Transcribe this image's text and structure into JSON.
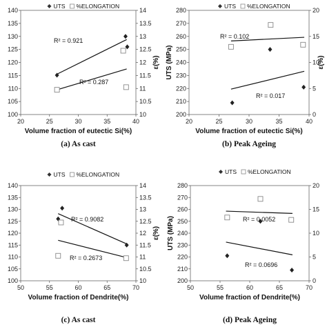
{
  "chart_data": [
    {
      "type": "scatter",
      "caption": "(a) As cast",
      "xlabel": "Volume fraction of eutectic Si(%)",
      "ylabel": "",
      "y2label": "ε(%)",
      "xlim": [
        20,
        40
      ],
      "xticks": [
        20,
        25,
        30,
        35,
        40
      ],
      "ylim": [
        100,
        140
      ],
      "yticks": [
        100,
        105,
        110,
        115,
        120,
        125,
        130,
        135,
        140
      ],
      "y2lim": [
        10,
        14
      ],
      "y2ticks": [
        "10",
        "10.5",
        "11",
        "11.5",
        "12",
        "12.5",
        "13",
        "13.5",
        "14"
      ],
      "legend": [
        "UTS",
        "%ELONGATION"
      ],
      "legend_placement": "top",
      "series": [
        {
          "name": "UTS",
          "marker": "diamond",
          "axis": "left",
          "x": [
            26.3,
            38.2,
            38.5
          ],
          "y": [
            115.1,
            130,
            126
          ]
        },
        {
          "name": "%ELONGATION",
          "marker": "square",
          "axis": "right",
          "x": [
            26.3,
            37.8,
            38.3
          ],
          "y": [
            10.95,
            12.45,
            11.05
          ]
        }
      ],
      "trendlines": [
        {
          "series": "UTS",
          "x": [
            26.3,
            38.4
          ],
          "y": [
            115.5,
            128.8
          ],
          "r2_label": "R² = 0.921"
        },
        {
          "series": "%ELONGATION",
          "x": [
            26.3,
            38.4
          ],
          "y": [
            10.95,
            11.75
          ],
          "r2_label": "R² = 0.287"
        }
      ]
    },
    {
      "type": "scatter",
      "caption": "(b) Peak Ageing",
      "xlabel": "Volume fraction of eutectic Si(%)",
      "ylabel": "UTS (MPa)",
      "y2label": "ε(%)",
      "xlim": [
        20,
        40
      ],
      "xticks": [
        20,
        25,
        30,
        35,
        40
      ],
      "ylim": [
        200,
        280
      ],
      "yticks": [
        200,
        210,
        220,
        230,
        240,
        250,
        260,
        270,
        280
      ],
      "y2lim": [
        0,
        20
      ],
      "y2ticks": [
        "0",
        "5",
        "10",
        "15",
        "20"
      ],
      "legend": [
        "UTS",
        "%ELONGATION"
      ],
      "legend_placement": "top",
      "series": [
        {
          "name": "UTS",
          "marker": "diamond",
          "axis": "left",
          "x": [
            27.2,
            33.5,
            39.1
          ],
          "y": [
            209,
            250,
            221
          ]
        },
        {
          "name": "%ELONGATION",
          "marker": "square",
          "axis": "right",
          "x": [
            27.0,
            33.6,
            39.0
          ],
          "y": [
            13.0,
            17.2,
            13.4
          ]
        }
      ],
      "trendlines": [
        {
          "series": "UTS",
          "x": [
            27.0,
            39.2
          ],
          "y": [
            256.5,
            259.3
          ],
          "r2_label": "R² = 0.102"
        },
        {
          "series": "%ELONGATION",
          "x": [
            27.0,
            39.2
          ],
          "y": [
            219.5,
            233.2
          ],
          "r2_label": "R² = 0.017"
        }
      ]
    },
    {
      "type": "scatter",
      "caption": "(c) As cast",
      "xlabel": "Volume fraction of Dendrite(%)",
      "ylabel": "",
      "y2label": "ε(%)",
      "xlim": [
        50,
        70
      ],
      "xticks": [
        50,
        55,
        60,
        65,
        70
      ],
      "ylim": [
        100,
        140
      ],
      "yticks": [
        100,
        105,
        110,
        115,
        120,
        125,
        130,
        135,
        140
      ],
      "y2lim": [
        10,
        14
      ],
      "y2ticks": [
        "10",
        "10.5",
        "11",
        "11.5",
        "12",
        "12.5",
        "13",
        "13.5",
        "14"
      ],
      "legend": [
        "UTS",
        "%ELONGATION"
      ],
      "legend_placement": "top-left",
      "series": [
        {
          "name": "UTS",
          "marker": "diamond",
          "axis": "left",
          "x": [
            56.5,
            57.2,
            68.4
          ],
          "y": [
            126,
            130.5,
            115
          ]
        },
        {
          "name": "%ELONGATION",
          "marker": "square",
          "axis": "right",
          "x": [
            56.5,
            57.0,
            68.3
          ],
          "y": [
            11.05,
            12.45,
            10.95
          ]
        }
      ],
      "trendlines": [
        {
          "series": "UTS",
          "x": [
            56.5,
            68.3
          ],
          "y": [
            128.2,
            115.6
          ],
          "r2_label": "R² = 0.9082"
        },
        {
          "series": "%ELONGATION",
          "x": [
            56.5,
            68.3
          ],
          "y": [
            11.7,
            10.98
          ],
          "r2_label": "R² = 0.2673"
        }
      ]
    },
    {
      "type": "scatter",
      "caption": "(d) Peak Ageing",
      "xlabel": "Volume fraction of Dendrite(%)",
      "ylabel": "UTS (MPa)",
      "y2label": "",
      "xlim": [
        50,
        70
      ],
      "xticks": [
        50,
        55,
        60,
        65,
        70
      ],
      "ylim": [
        200,
        280
      ],
      "yticks": [
        200,
        210,
        220,
        230,
        240,
        250,
        260,
        270,
        280
      ],
      "y2lim": [
        0,
        20
      ],
      "y2ticks": [
        "0",
        "5",
        "10",
        "15",
        "20"
      ],
      "legend": [
        "UTS",
        "%ELONGATION"
      ],
      "legend_placement": "top",
      "series": [
        {
          "name": "UTS",
          "marker": "diamond",
          "axis": "left",
          "x": [
            56.2,
            61.8,
            67.1
          ],
          "y": [
            221,
            250,
            209
          ]
        },
        {
          "name": "%ELONGATION",
          "marker": "square",
          "axis": "right",
          "x": [
            56.2,
            61.8,
            67.0
          ],
          "y": [
            13.3,
            17.2,
            12.8
          ]
        }
      ],
      "trendlines": [
        {
          "series": "UTS",
          "x": [
            56.0,
            67.2
          ],
          "y": [
            258.5,
            256.6
          ],
          "r2_label": "R² = 0.0052"
        },
        {
          "series": "%ELONGATION",
          "x": [
            56.0,
            67.2
          ],
          "y": [
            232.5,
            221.8
          ],
          "r2_label": "R² = 0.0696"
        }
      ]
    }
  ]
}
